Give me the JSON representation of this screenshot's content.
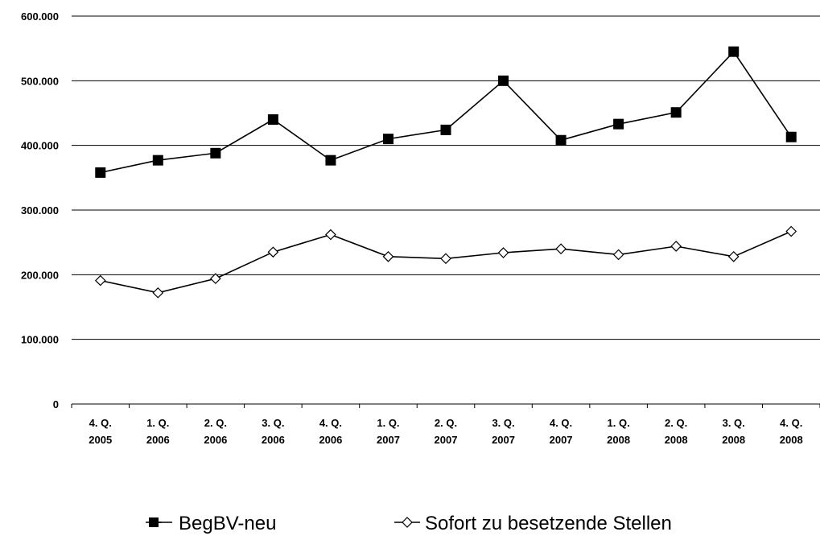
{
  "colors": {
    "background": "#ffffff",
    "line": "#000000",
    "grid": "#000000"
  },
  "chart_data": {
    "type": "line",
    "title": "",
    "xlabel": "",
    "ylabel": "",
    "categories": [
      [
        "4. Q.",
        "2005"
      ],
      [
        "1. Q.",
        "2006"
      ],
      [
        "2. Q.",
        "2006"
      ],
      [
        "3. Q.",
        "2006"
      ],
      [
        "4. Q.",
        "2006"
      ],
      [
        "1. Q.",
        "2007"
      ],
      [
        "2. Q.",
        "2007"
      ],
      [
        "3. Q.",
        "2007"
      ],
      [
        "4. Q.",
        "2007"
      ],
      [
        "1. Q.",
        "2008"
      ],
      [
        "2. Q.",
        "2008"
      ],
      [
        "3. Q.",
        "2008"
      ],
      [
        "4. Q.",
        "2008"
      ]
    ],
    "ylim": [
      0,
      600000
    ],
    "yticks": [
      0,
      100000,
      200000,
      300000,
      400000,
      500000,
      600000
    ],
    "ytick_labels": [
      "0",
      "100.000",
      "200.000",
      "300.000",
      "400.000",
      "500.000",
      "600.000"
    ],
    "grid": true,
    "legend_position": "bottom",
    "series": [
      {
        "name": "BegBV-neu",
        "marker": "filled-square",
        "values": [
          358000,
          377000,
          388000,
          440000,
          377000,
          410000,
          424000,
          500000,
          408000,
          433000,
          451000,
          545000,
          413000
        ]
      },
      {
        "name": "Sofort zu besetzende Stellen",
        "marker": "open-diamond",
        "values": [
          191000,
          172000,
          194000,
          235000,
          262000,
          228000,
          225000,
          234000,
          240000,
          231000,
          244000,
          228000,
          267000
        ]
      }
    ]
  }
}
